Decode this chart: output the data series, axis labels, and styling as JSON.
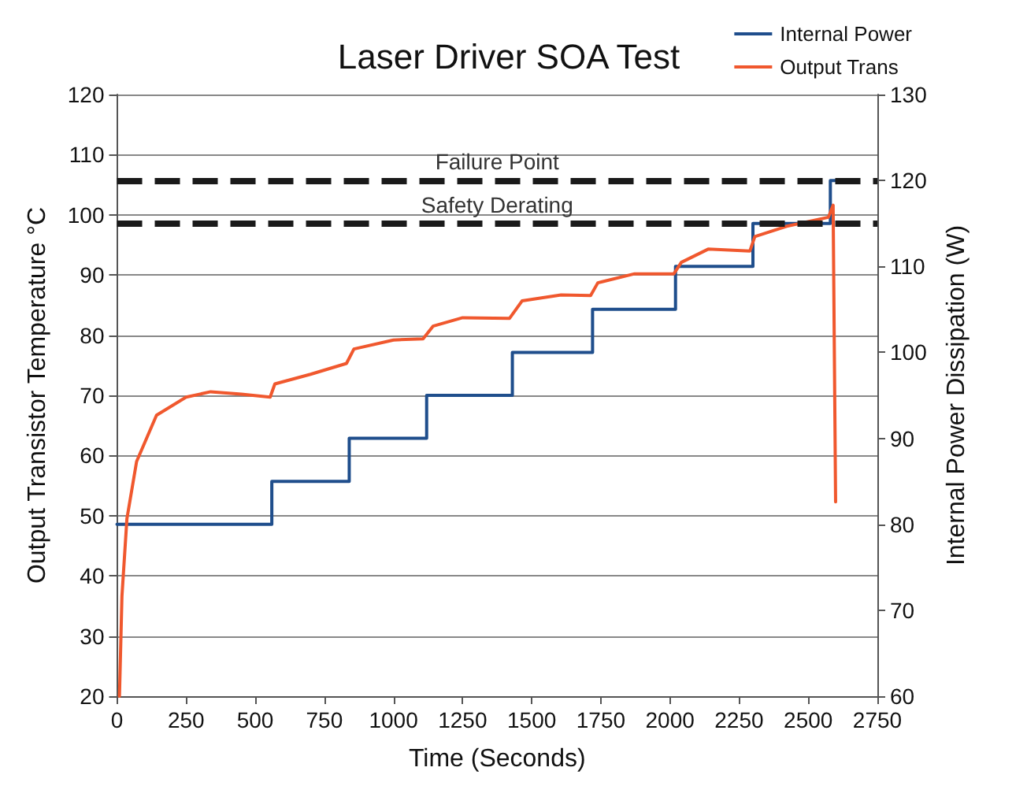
{
  "chart_data": {
    "type": "line",
    "title": "Laser Driver SOA Test",
    "xlabel": "Time (Seconds)",
    "ylabel": "Output Transistor Temperature °C",
    "y2label": "Internal Power Dissipation (W)",
    "xlim": [
      0,
      2750
    ],
    "xticks": [
      0,
      250,
      500,
      750,
      1000,
      1250,
      1500,
      1750,
      2000,
      2250,
      2500,
      2750
    ],
    "ylim": [
      20,
      120
    ],
    "yticks": [
      20,
      30,
      40,
      50,
      60,
      70,
      80,
      90,
      100,
      110,
      120
    ],
    "y2lim": [
      60,
      130
    ],
    "y2ticks": [
      60,
      70,
      80,
      90,
      100,
      110,
      120,
      130
    ],
    "grid": "y",
    "legend": "top right",
    "marker": "none",
    "line_style": "solid",
    "series": [
      {
        "name": "Internal Power",
        "color": "#1f4e8c",
        "type": "step",
        "axis": "y2",
        "x": [
          0,
          560,
          840,
          1120,
          1430,
          1720,
          2020,
          2300,
          2580,
          2600
        ],
        "values": [
          80,
          85,
          90,
          95,
          100,
          105,
          110,
          115,
          120,
          120
        ]
      },
      {
        "name": "Output Trans",
        "color": "#f0582e",
        "axis": "y",
        "x": [
          9,
          18,
          36,
          71,
          143,
          250,
          339,
          450,
          554,
          571,
          700,
          830,
          857,
          1000,
          1107,
          1143,
          1250,
          1420,
          1465,
          1606,
          1713,
          1739,
          1872,
          2014,
          2041,
          2138,
          2289,
          2307,
          2422,
          2573,
          2590,
          2599
        ],
        "values": [
          20,
          36.6,
          49.5,
          59,
          66.7,
          69.7,
          70.6,
          70.2,
          69.7,
          71.9,
          73.5,
          75.3,
          77.7,
          79.2,
          79.4,
          81.5,
          82.9,
          82.8,
          85.7,
          86.7,
          86.6,
          88.7,
          90.2,
          90.2,
          92.1,
          94.3,
          94,
          96.4,
          98.1,
          99.6,
          101.6,
          52.3
        ]
      }
    ],
    "ref_lines": [
      {
        "axis": "y2",
        "value": 120,
        "label": "Failure Point",
        "color": "#1a1a1a",
        "line_style": "dashed"
      },
      {
        "axis": "y2",
        "value": 115,
        "label": "Safety Derating",
        "color": "#1a1a1a",
        "line_style": "dashed"
      }
    ]
  }
}
